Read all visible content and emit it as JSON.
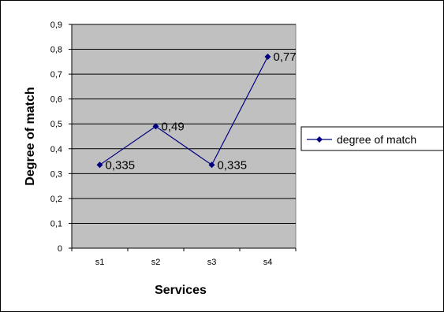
{
  "chart_data": {
    "type": "line",
    "title": "",
    "xlabel": "Services",
    "ylabel": "Degree of match",
    "categories": [
      "s1",
      "s2",
      "s3",
      "s4"
    ],
    "series": [
      {
        "name": "degree of match",
        "values": [
          0.335,
          0.49,
          0.335,
          0.77
        ],
        "labels": [
          "0,335",
          "0,49",
          "0,335",
          "0,77"
        ],
        "color": "#000080"
      }
    ],
    "ylim": [
      0,
      0.9
    ],
    "yticks": [
      0,
      0.1,
      0.2,
      0.3,
      0.4,
      0.5,
      0.6,
      0.7,
      0.8,
      0.9
    ],
    "ytick_labels": [
      "0",
      "0,1",
      "0,2",
      "0,3",
      "0,4",
      "0,5",
      "0,6",
      "0,7",
      "0,8",
      "0,9"
    ],
    "grid": true,
    "plot_background": "#c0c0c0",
    "legend_position": "right"
  }
}
